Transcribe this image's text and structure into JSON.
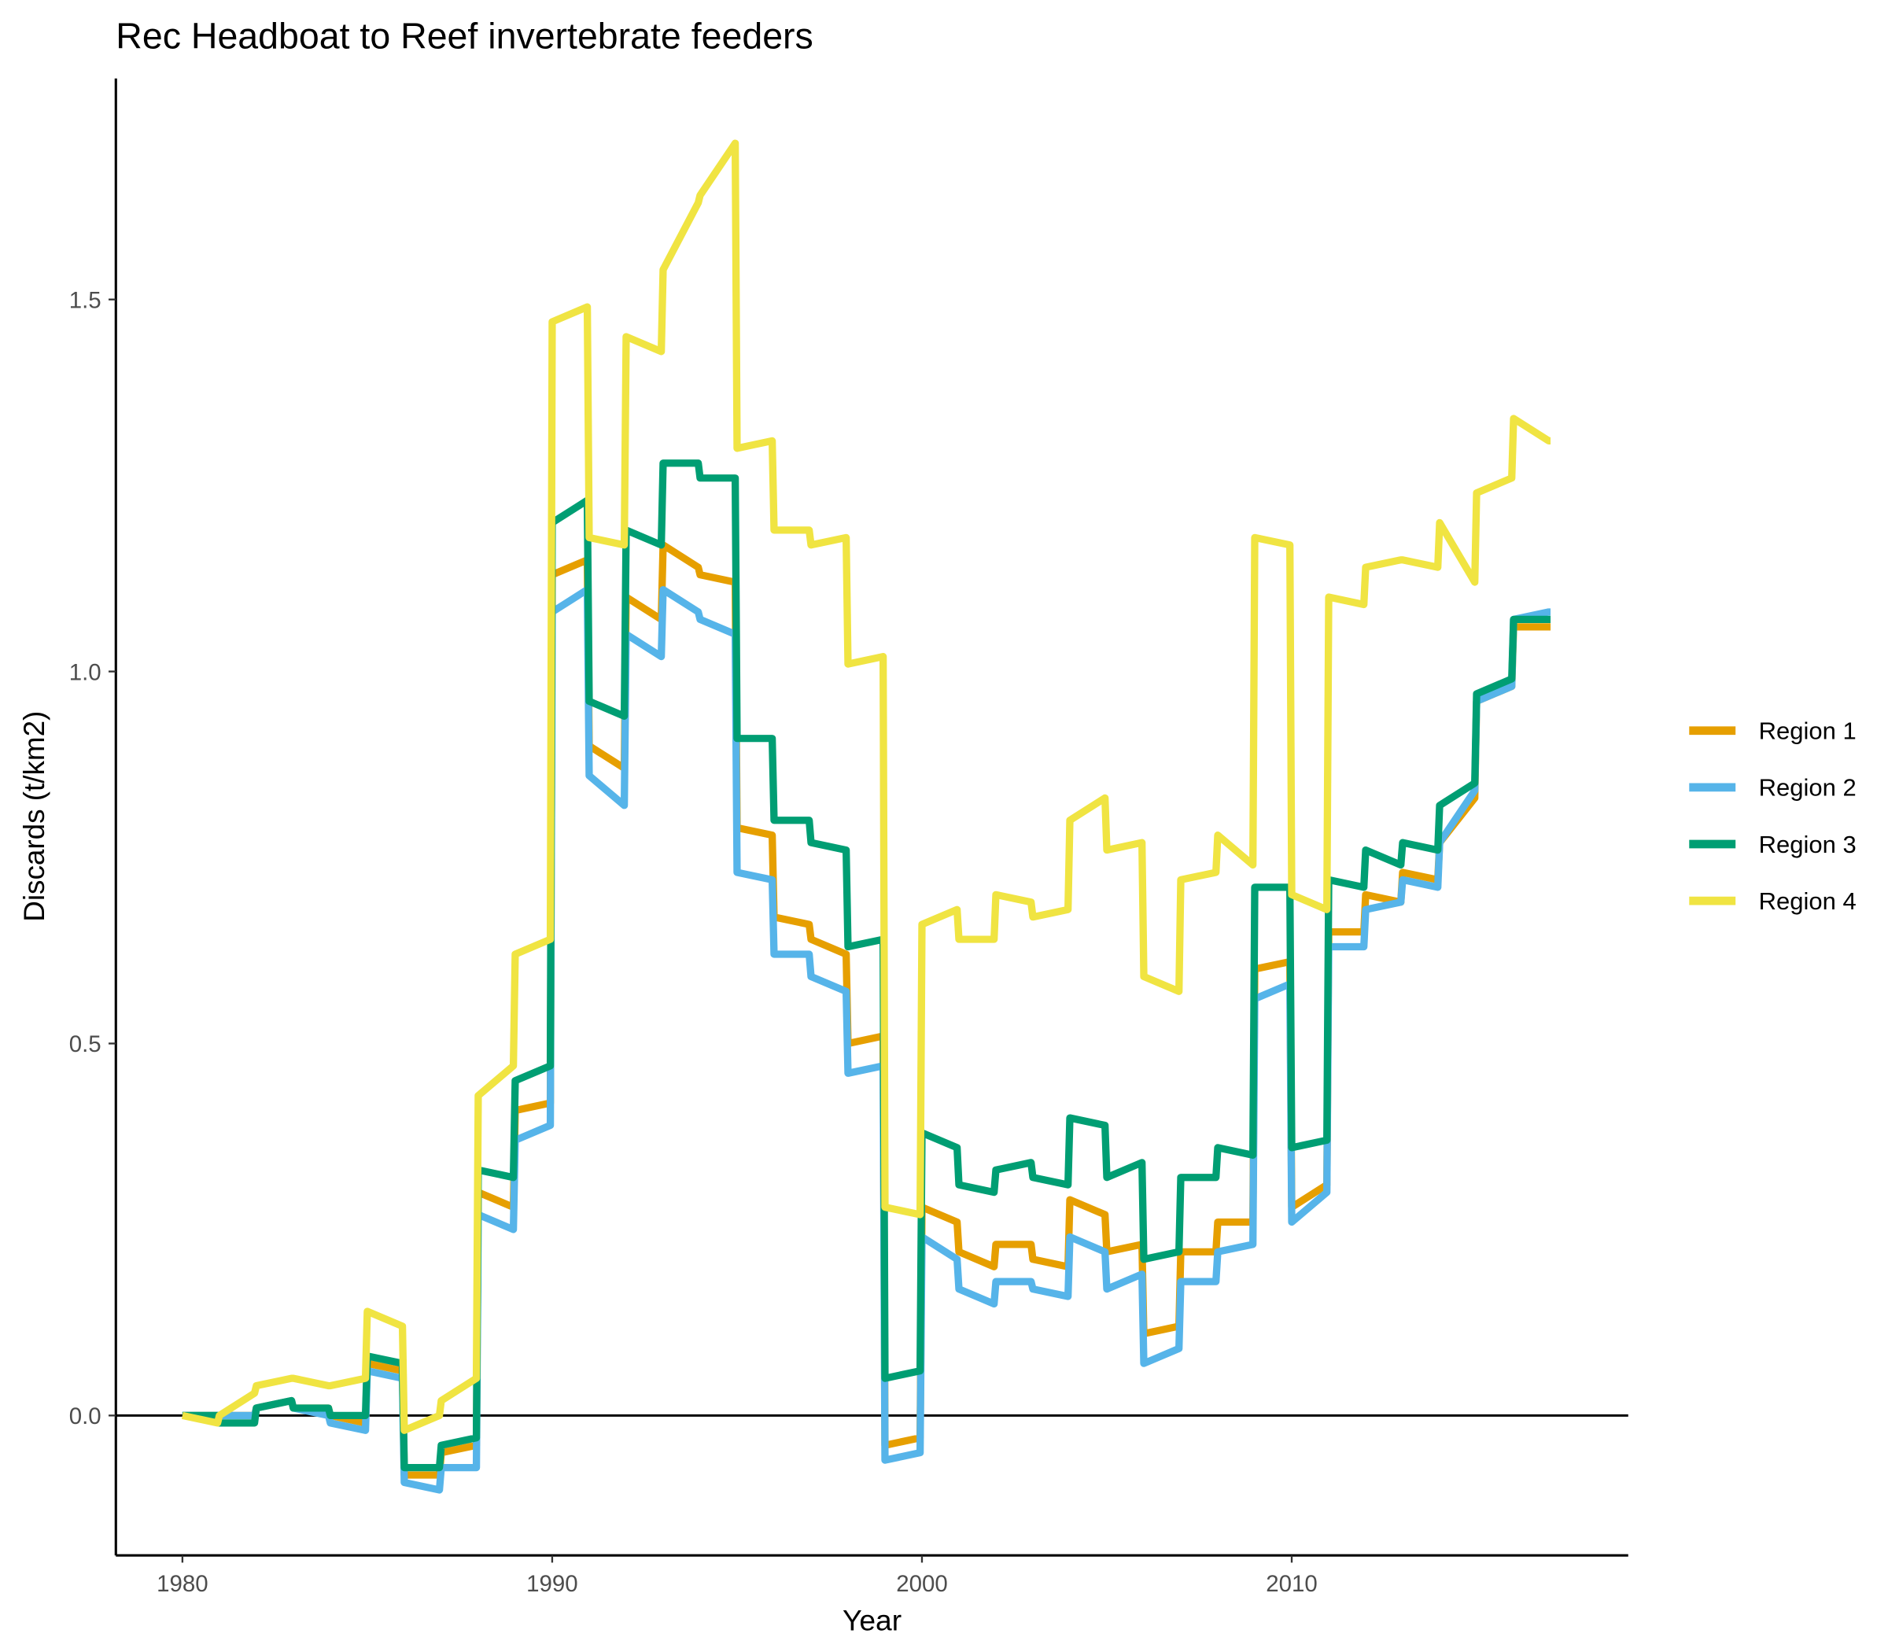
{
  "chart_data": {
    "type": "line",
    "title": "Rec Headboat to Reef invertebrate feeders",
    "x_label": "Year",
    "y_label": "Discards (t/km2)",
    "xlim": [
      1978.2,
      2019.1
    ],
    "ylim": [
      -0.188,
      1.797
    ],
    "xticks": [
      1980,
      1990,
      2000,
      2010
    ],
    "yticks": [
      {
        "value": 0,
        "label": "0.0"
      },
      0.5,
      {
        "value": 1,
        "label": "1.0"
      },
      1.5
    ],
    "grid": false,
    "legend": "right",
    "x": [
      1980,
      1980.95,
      1981,
      1981.95,
      1982,
      1982.95,
      1983,
      1983.95,
      1984,
      1984.95,
      1985,
      1985.95,
      1986,
      1986.95,
      1987,
      1987.95,
      1988,
      1988.95,
      1989,
      1989.95,
      1990,
      1990.95,
      1991,
      1991.95,
      1992,
      1992.95,
      1993,
      1993.95,
      1994,
      1994.95,
      1995,
      1995.95,
      1996,
      1996.95,
      1997,
      1997.95,
      1998,
      1998.95,
      1999,
      1999.95,
      2000,
      2000.95,
      2001,
      2001.95,
      2002,
      2002.95,
      2003,
      2003.95,
      2004,
      2004.95,
      2005,
      2005.95,
      2006,
      2006.95,
      2007,
      2007.95,
      2008,
      2008.95,
      2009,
      2009.95,
      2010,
      2010.95,
      2011,
      2011.95,
      2012,
      2012.95,
      2013,
      2013.95,
      2014,
      2014.95,
      2015,
      2015.95,
      2016,
      2016.95,
      2017
    ],
    "series": [
      {
        "name": "Region 1",
        "color": "#E69F00",
        "values": [
          0,
          0,
          0,
          0,
          0.01,
          0.02,
          0.01,
          0.01,
          0,
          -0.01,
          0.07,
          0.06,
          -0.08,
          -0.08,
          -0.05,
          -0.04,
          0.3,
          0.28,
          0.41,
          0.42,
          1.13,
          1.15,
          0.9,
          0.87,
          1.1,
          1.07,
          1.17,
          1.14,
          1.13,
          1.12,
          0.79,
          0.78,
          0.67,
          0.66,
          0.64,
          0.62,
          0.5,
          0.51,
          -0.04,
          -0.03,
          0.28,
          0.26,
          0.22,
          0.2,
          0.23,
          0.23,
          0.21,
          0.2,
          0.29,
          0.27,
          0.22,
          0.23,
          0.11,
          0.12,
          0.22,
          0.22,
          0.26,
          0.26,
          0.6,
          0.61,
          0.28,
          0.31,
          0.65,
          0.65,
          0.7,
          0.69,
          0.73,
          0.72,
          0.77,
          0.83,
          0.96,
          0.98,
          1.06,
          1.06,
          1.06
        ]
      },
      {
        "name": "Region 2",
        "color": "#56B4E9",
        "values": [
          0,
          0,
          0,
          0,
          0.01,
          0.02,
          0.01,
          0,
          -0.01,
          -0.02,
          0.06,
          0.05,
          -0.09,
          -0.1,
          -0.07,
          -0.07,
          0.27,
          0.25,
          0.37,
          0.39,
          1.08,
          1.11,
          0.86,
          0.82,
          1.05,
          1.02,
          1.11,
          1.08,
          1.07,
          1.05,
          0.73,
          0.72,
          0.62,
          0.62,
          0.59,
          0.57,
          0.46,
          0.47,
          -0.06,
          -0.05,
          0.24,
          0.21,
          0.17,
          0.15,
          0.18,
          0.18,
          0.17,
          0.16,
          0.24,
          0.22,
          0.17,
          0.19,
          0.07,
          0.09,
          0.18,
          0.18,
          0.22,
          0.23,
          0.56,
          0.58,
          0.26,
          0.3,
          0.63,
          0.63,
          0.68,
          0.69,
          0.72,
          0.71,
          0.77,
          0.84,
          0.96,
          0.98,
          1.07,
          1.08,
          1.08
        ]
      },
      {
        "name": "Region 3",
        "color": "#009E73",
        "values": [
          0,
          0,
          -0.01,
          -0.01,
          0.01,
          0.02,
          0.01,
          0.01,
          0,
          0,
          0.08,
          0.07,
          -0.07,
          -0.07,
          -0.04,
          -0.03,
          0.33,
          0.32,
          0.45,
          0.47,
          1.2,
          1.23,
          0.96,
          0.94,
          1.19,
          1.17,
          1.28,
          1.28,
          1.26,
          1.26,
          0.91,
          0.91,
          0.8,
          0.8,
          0.77,
          0.76,
          0.63,
          0.64,
          0.05,
          0.06,
          0.38,
          0.36,
          0.31,
          0.3,
          0.33,
          0.34,
          0.32,
          0.31,
          0.4,
          0.39,
          0.32,
          0.34,
          0.21,
          0.22,
          0.32,
          0.32,
          0.36,
          0.35,
          0.71,
          0.71,
          0.36,
          0.37,
          0.72,
          0.71,
          0.76,
          0.74,
          0.77,
          0.76,
          0.82,
          0.85,
          0.97,
          0.99,
          1.07,
          1.07,
          1.07
        ]
      },
      {
        "name": "Region 4",
        "color": "#F0E442",
        "values": [
          0,
          -0.01,
          0,
          0.03,
          0.04,
          0.05,
          0.05,
          0.04,
          0.04,
          0.05,
          0.14,
          0.12,
          -0.02,
          0,
          0.02,
          0.05,
          0.43,
          0.47,
          0.62,
          0.64,
          1.47,
          1.49,
          1.18,
          1.17,
          1.45,
          1.43,
          1.54,
          1.63,
          1.64,
          1.71,
          1.3,
          1.31,
          1.19,
          1.19,
          1.17,
          1.18,
          1.01,
          1.02,
          0.28,
          0.27,
          0.66,
          0.68,
          0.64,
          0.64,
          0.7,
          0.69,
          0.67,
          0.68,
          0.8,
          0.83,
          0.76,
          0.77,
          0.59,
          0.57,
          0.72,
          0.73,
          0.78,
          0.74,
          1.18,
          1.17,
          0.7,
          0.68,
          1.1,
          1.09,
          1.14,
          1.15,
          1.15,
          1.14,
          1.2,
          1.12,
          1.24,
          1.26,
          1.34,
          1.31,
          1.31
        ]
      }
    ]
  }
}
